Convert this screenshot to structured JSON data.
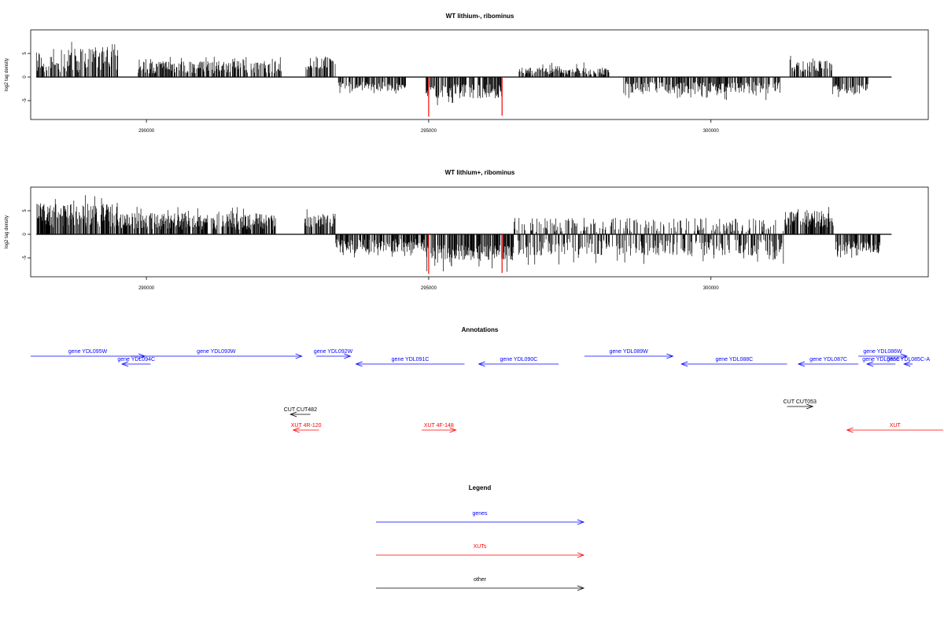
{
  "chart_data": [
    {
      "type": "bar",
      "title": "WT lithium-, ribominus",
      "ylabel": "log2 tag density",
      "xlim": [
        287950,
        303850
      ],
      "ylim": [
        -9,
        10
      ],
      "x_ticks": [
        290000,
        295000,
        300000
      ],
      "x_tick_labels": [
        "290000",
        "295000",
        "300000"
      ],
      "y_ticks": [
        5,
        0,
        -5
      ],
      "y_tick_labels": [
        "5",
        "0",
        "-5"
      ],
      "density_regions": [
        {
          "start": 288050,
          "end": 289500,
          "min": 1.0,
          "max": 6.0,
          "peak": 7.5
        },
        {
          "start": 289850,
          "end": 292400,
          "min": 0.8,
          "max": 3.4,
          "peak": 4.5
        },
        {
          "start": 292800,
          "end": 293350,
          "min": 1.5,
          "max": 4.5,
          "peak": 5.0
        },
        {
          "start": 293400,
          "end": 294600,
          "min": -3.0,
          "max": -1.0,
          "peak": -3.5
        },
        {
          "start": 294950,
          "end": 296300,
          "min": -4.5,
          "max": -1.5,
          "peak": -6.0
        },
        {
          "start": 296600,
          "end": 298200,
          "min": 0.5,
          "max": 2.0,
          "peak": 3.2
        },
        {
          "start": 298450,
          "end": 301250,
          "min": -3.5,
          "max": -1.0,
          "peak": -5.0
        },
        {
          "start": 301400,
          "end": 302150,
          "min": 1.0,
          "max": 3.5,
          "peak": 4.5
        },
        {
          "start": 302150,
          "end": 302800,
          "min": -3.5,
          "max": -1.5,
          "peak": -4.5
        }
      ],
      "highlight_bars": [
        {
          "x": 295000,
          "y": -8.4,
          "color": "#ff0000"
        },
        {
          "x": 296300,
          "y": -8.2,
          "color": "#ff0000"
        }
      ]
    },
    {
      "type": "bar",
      "title": "WT lithium+, ribominus",
      "ylabel": "log2 tag density",
      "xlim": [
        287950,
        303850
      ],
      "ylim": [
        -9,
        10
      ],
      "x_ticks": [
        290000,
        295000,
        300000
      ],
      "x_tick_labels": [
        "290000",
        "295000",
        "300000"
      ],
      "y_ticks": [
        5,
        0,
        -5
      ],
      "y_tick_labels": [
        "5",
        "0",
        "-5"
      ],
      "density_regions": [
        {
          "start": 288050,
          "end": 289500,
          "min": 1.5,
          "max": 6.5,
          "peak": 8.5
        },
        {
          "start": 289500,
          "end": 292300,
          "min": 1.0,
          "max": 4.5,
          "peak": 6.0
        },
        {
          "start": 292800,
          "end": 293350,
          "min": 1.5,
          "max": 4.5,
          "peak": 5.5
        },
        {
          "start": 293350,
          "end": 294950,
          "min": -4.0,
          "max": -1.0,
          "peak": -5.0
        },
        {
          "start": 294950,
          "end": 296500,
          "min": -5.5,
          "max": -2.0,
          "peak": -8.0
        },
        {
          "start": 296500,
          "end": 301300,
          "min": -4.5,
          "max": 3.5,
          "peak": -6.5
        },
        {
          "start": 301300,
          "end": 302200,
          "min": 1.5,
          "max": 5.0,
          "peak": 5.8
        },
        {
          "start": 302200,
          "end": 303000,
          "min": -4.5,
          "max": -1.5,
          "peak": -5.5
        }
      ],
      "highlight_bars": [
        {
          "x": 295000,
          "y": -8.4,
          "color": "#ff0000"
        },
        {
          "x": 296300,
          "y": -8.2,
          "color": "#ff0000"
        }
      ]
    }
  ],
  "annotations": {
    "title": "Annotations",
    "xlim": [
      288000,
      304000
    ],
    "items": [
      {
        "label": "gene YDL095W",
        "start": 288000,
        "end": 290000,
        "dir": 1,
        "row": 0,
        "type": "gene"
      },
      {
        "label": "gene YDL094C",
        "start": 289600,
        "end": 290100,
        "dir": -1,
        "row": 1,
        "type": "gene"
      },
      {
        "label": "gene YDL093W",
        "start": 289750,
        "end": 292750,
        "dir": 1,
        "row": 0,
        "type": "gene"
      },
      {
        "label": "gene YDL092W",
        "start": 293000,
        "end": 293600,
        "dir": 1,
        "row": 0,
        "type": "gene"
      },
      {
        "label": "gene YDL091C",
        "start": 293700,
        "end": 295600,
        "dir": -1,
        "row": 1,
        "type": "gene"
      },
      {
        "label": "gene YDL090C",
        "start": 295850,
        "end": 297250,
        "dir": -1,
        "row": 1,
        "type": "gene"
      },
      {
        "label": "gene YDL089W",
        "start": 297700,
        "end": 299250,
        "dir": 1,
        "row": 0,
        "type": "gene"
      },
      {
        "label": "gene YDL088C",
        "start": 299400,
        "end": 301250,
        "dir": -1,
        "row": 1,
        "type": "gene"
      },
      {
        "label": "gene YDL087C",
        "start": 301450,
        "end": 302500,
        "dir": -1,
        "row": 1,
        "type": "gene"
      },
      {
        "label": "gene YDL086W",
        "start": 302500,
        "end": 303350,
        "dir": 1,
        "row": 0,
        "type": "gene"
      },
      {
        "label": "gene YDL085C-A",
        "start": 303300,
        "end": 303450,
        "dir": -1,
        "row": 1,
        "type": "gene"
      },
      {
        "label": "gene YDL086C",
        "start": 302650,
        "end": 303150,
        "dir": -1,
        "row": 1,
        "type": "gene"
      },
      {
        "label": "CUT CUT482",
        "start": 292550,
        "end": 292900,
        "dir": -1,
        "row": 3,
        "type": "other"
      },
      {
        "label": "CUT CUT053",
        "start": 301250,
        "end": 301700,
        "dir": 1,
        "row": 2,
        "type": "other"
      },
      {
        "label": "XUT 4R-120",
        "start": 292600,
        "end": 293050,
        "dir": -1,
        "row": 4,
        "type": "xut"
      },
      {
        "label": "XUT 4F-148",
        "start": 294850,
        "end": 295450,
        "dir": 1,
        "row": 4,
        "type": "xut"
      },
      {
        "label": "XUT",
        "start": 302300,
        "end": 304000,
        "dir": -1,
        "row": 4,
        "type": "xut"
      }
    ]
  },
  "legend": {
    "title": "Legend",
    "items": [
      {
        "label": "genes",
        "color": "#0000ff"
      },
      {
        "label": "XUTs",
        "color": "#ff0000"
      },
      {
        "label": "other",
        "color": "#000000"
      }
    ]
  },
  "colors": {
    "gene": "#0000ff",
    "xut": "#ff0000",
    "other": "#000000"
  }
}
